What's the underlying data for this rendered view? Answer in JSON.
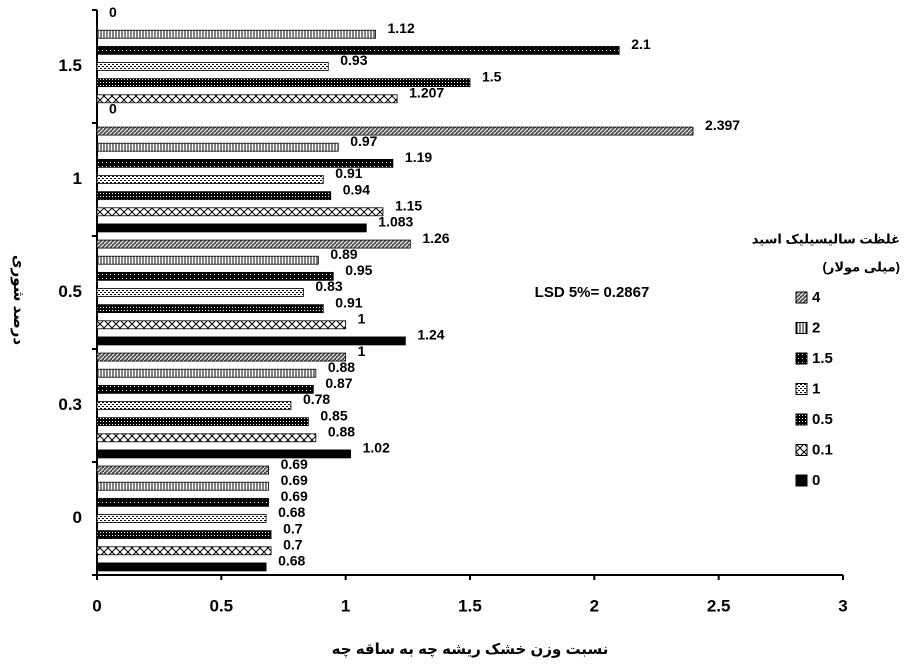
{
  "chart_data": {
    "type": "bar",
    "orientation": "horizontal",
    "x_label": "نسبت وزن خشک ریشه چه به ساقه چه",
    "y_label": "درصد شوری",
    "legend_title": [
      "غلظت سالیسیلیک اسید",
      "(میلی مولار)"
    ],
    "annotation": "LSD 5%= 0.2867",
    "categories": [
      "0",
      "0.3",
      "0.5",
      "1",
      "1.5"
    ],
    "series": [
      {
        "name": "0",
        "color": "#000000",
        "values": [
          0.68,
          1.02,
          1.24,
          1.083,
          0
        ]
      },
      {
        "name": "0.1",
        "color": "#000000",
        "values": [
          0.7,
          0.88,
          1,
          1.15,
          1.207
        ]
      },
      {
        "name": "0.5",
        "color": "#000000",
        "values": [
          0.7,
          0.85,
          0.91,
          0.94,
          1.5
        ]
      },
      {
        "name": "1",
        "color": "#000000",
        "values": [
          0.68,
          0.78,
          0.83,
          0.91,
          0.93
        ]
      },
      {
        "name": "1.5",
        "color": "#000000",
        "values": [
          0.69,
          0.87,
          0.95,
          1.19,
          2.1
        ]
      },
      {
        "name": "2",
        "color": "#000000",
        "values": [
          0.69,
          0.88,
          0.89,
          0.97,
          1.12
        ]
      },
      {
        "name": "4",
        "color": "#000000",
        "values": [
          0.69,
          1,
          1.26,
          2.397,
          0
        ]
      }
    ],
    "xlim": [
      0,
      3
    ],
    "xticks": [
      0,
      0.5,
      1,
      1.5,
      2,
      2.5,
      3
    ],
    "legend_position": "right"
  }
}
